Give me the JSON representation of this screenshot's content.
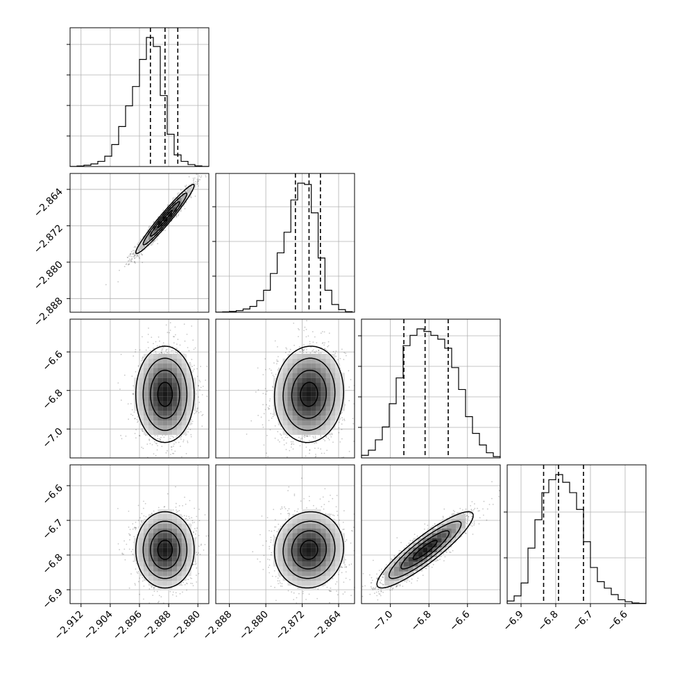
{
  "chart_data": {
    "type": "corner",
    "title": "",
    "grid": true,
    "parameters": [
      {
        "range": [
          -2.915,
          -2.877
        ],
        "ticks": [
          -2.912,
          -2.904,
          -2.896,
          -2.888,
          -2.88
        ],
        "tick_labels": [
          "−2.912",
          "−2.904",
          "−2.896",
          "−2.888",
          "−2.880"
        ],
        "quantiles": [
          -2.893,
          -2.889,
          -2.8855
        ],
        "histogram": {
          "edges": [
            -2.915,
            -2.9131,
            -2.9112,
            -2.9093,
            -2.9074,
            -2.9055,
            -2.9036,
            -2.9017,
            -2.8998,
            -2.8979,
            -2.896,
            -2.8941,
            -2.8922,
            -2.8903,
            -2.8884,
            -2.8865,
            -2.8846,
            -2.8827,
            -2.8808,
            -2.8789,
            -2.877
          ],
          "counts": [
            0.001,
            0.004,
            0.01,
            0.02,
            0.04,
            0.08,
            0.17,
            0.31,
            0.47,
            0.62,
            0.83,
            1.0,
            0.93,
            0.55,
            0.25,
            0.09,
            0.04,
            0.015,
            0.005,
            0.001
          ],
          "ytick_fractions": [
            0.22,
            0.44,
            0.66,
            0.88
          ]
        }
      },
      {
        "range": [
          -2.891,
          -2.8605
        ],
        "ticks": [
          -2.888,
          -2.88,
          -2.872,
          -2.864
        ],
        "tick_labels": [
          "−2.888",
          "−2.880",
          "−2.872",
          "−2.864"
        ],
        "quantiles": [
          -2.8735,
          -2.8705,
          -2.868
        ],
        "histogram": {
          "edges": [
            -2.891,
            -2.8895,
            -2.888,
            -2.8865,
            -2.885,
            -2.8835,
            -2.882,
            -2.8805,
            -2.879,
            -2.8775,
            -2.876,
            -2.8745,
            -2.873,
            -2.8715,
            -2.87,
            -2.8685,
            -2.867,
            -2.8655,
            -2.864,
            -2.8625,
            -2.861
          ],
          "counts": [
            0.001,
            0.003,
            0.006,
            0.012,
            0.025,
            0.045,
            0.09,
            0.17,
            0.3,
            0.46,
            0.62,
            0.87,
            1.0,
            0.99,
            0.77,
            0.42,
            0.17,
            0.06,
            0.02,
            0.004
          ],
          "ytick_fractions": [
            0.26,
            0.51,
            0.76
          ]
        }
      },
      {
        "range": [
          -7.15,
          -6.43
        ],
        "ticks": [
          -7.0,
          -6.8,
          -6.6
        ],
        "tick_labels": [
          "−7.0",
          "−6.8",
          "−6.6"
        ],
        "quantiles": [
          -6.93,
          -6.82,
          -6.7
        ],
        "histogram": {
          "edges": [
            -7.15,
            -7.114,
            -7.078,
            -7.042,
            -7.006,
            -6.97,
            -6.934,
            -6.898,
            -6.862,
            -6.826,
            -6.79,
            -6.754,
            -6.718,
            -6.682,
            -6.646,
            -6.61,
            -6.574,
            -6.538,
            -6.502,
            -6.466,
            -6.43
          ],
          "counts": [
            0.02,
            0.06,
            0.14,
            0.24,
            0.42,
            0.62,
            0.87,
            0.95,
            1.0,
            0.98,
            0.95,
            0.92,
            0.85,
            0.7,
            0.53,
            0.32,
            0.19,
            0.1,
            0.04,
            0.01
          ],
          "ytick_fractions": [
            0.22,
            0.44,
            0.66,
            0.88
          ]
        }
      },
      {
        "range": [
          -6.94,
          -6.54
        ],
        "ticks": [
          -6.9,
          -6.8,
          -6.7,
          -6.6
        ],
        "tick_labels": [
          "−6.9",
          "−6.8",
          "−6.7",
          "−6.6"
        ],
        "quantiles": [
          -6.835,
          -6.792,
          -6.72
        ],
        "histogram": {
          "edges": [
            -6.94,
            -6.92,
            -6.9,
            -6.88,
            -6.86,
            -6.84,
            -6.82,
            -6.8,
            -6.78,
            -6.76,
            -6.74,
            -6.72,
            -6.7,
            -6.68,
            -6.66,
            -6.64,
            -6.62,
            -6.6,
            -6.58,
            -6.56,
            -6.54
          ],
          "counts": [
            0.02,
            0.06,
            0.16,
            0.43,
            0.65,
            0.86,
            0.96,
            1.0,
            0.94,
            0.86,
            0.73,
            0.48,
            0.28,
            0.17,
            0.12,
            0.07,
            0.03,
            0.015,
            0.005,
            0.002
          ],
          "ytick_fractions": [
            0.33,
            0.66
          ]
        }
      }
    ],
    "pairs": [
      {
        "row": 1,
        "col": 0,
        "mean": [
          -2.889,
          -2.8705
        ],
        "std": [
          0.004,
          0.0038
        ],
        "correlation": 0.97
      },
      {
        "row": 2,
        "col": 0,
        "mean": [
          -2.889,
          -6.82
        ],
        "std": [
          0.004,
          0.125
        ],
        "correlation": 0.0
      },
      {
        "row": 2,
        "col": 1,
        "mean": [
          -2.8705,
          -6.82
        ],
        "std": [
          0.0038,
          0.125
        ],
        "correlation": 0.05
      },
      {
        "row": 3,
        "col": 0,
        "mean": [
          -2.889,
          -6.785
        ],
        "std": [
          0.004,
          0.055
        ],
        "correlation": 0.0
      },
      {
        "row": 3,
        "col": 1,
        "mean": [
          -2.8705,
          -6.785
        ],
        "std": [
          0.0038,
          0.055
        ],
        "correlation": 0.05
      },
      {
        "row": 3,
        "col": 2,
        "mean": [
          -6.82,
          -6.785
        ],
        "std": [
          0.125,
          0.055
        ],
        "correlation": 0.9
      }
    ],
    "colors": {
      "line": "#000000",
      "grid": "#b0b0b0",
      "density_max": "#000000",
      "scatter": "#000000"
    }
  }
}
